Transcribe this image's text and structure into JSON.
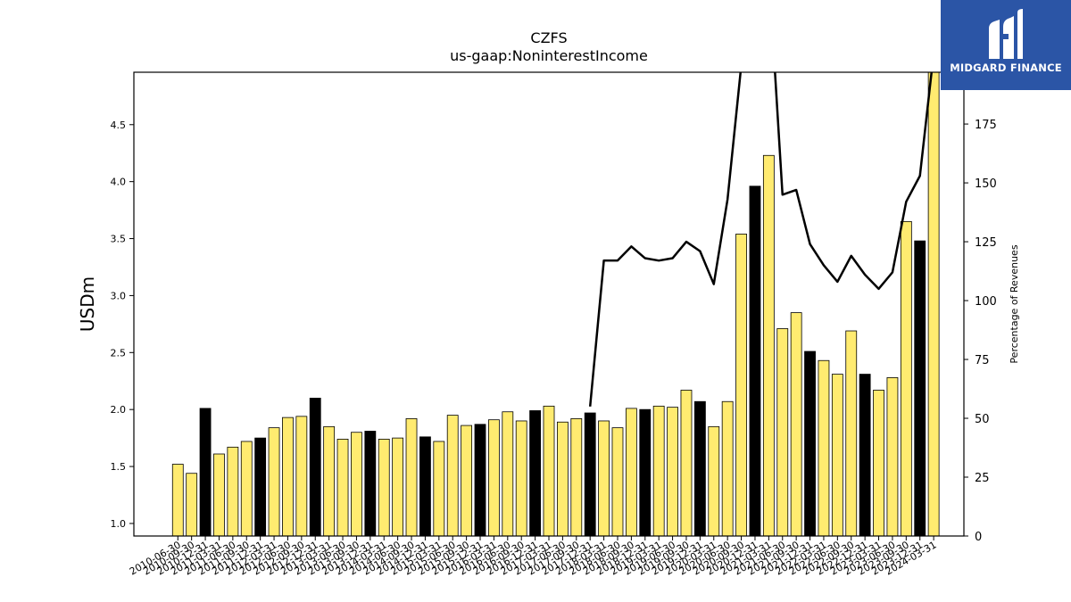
{
  "brand": {
    "name": "MIDGARD FINANCE"
  },
  "chart_data": {
    "type": "bar",
    "title": "CZFS",
    "subtitle": "us-gaap:NoninterestIncome",
    "ylabel": "USDm",
    "y2label": "Percentage of Revenues",
    "ylim": [
      0.89,
      4.96
    ],
    "y2lim": [
      0,
      197
    ],
    "yticks": [
      1.0,
      1.5,
      2.0,
      2.5,
      3.0,
      3.5,
      4.0,
      4.5
    ],
    "y2ticks": [
      0,
      25,
      50,
      75,
      100,
      125,
      150,
      175,
      200
    ],
    "colors": {
      "bar_default": "#ffeb70",
      "bar_highlight": "#000000",
      "line": "#000000"
    },
    "categories": [
      "2010-06-30",
      "2010-09-30",
      "2010-12-31",
      "2011-03-31",
      "2011-06-30",
      "2011-09-30",
      "2011-12-31",
      "2012-03-31",
      "2012-06-30",
      "2012-09-30",
      "2012-12-31",
      "2013-03-31",
      "2013-06-30",
      "2013-09-30",
      "2013-12-31",
      "2014-03-31",
      "2014-06-30",
      "2014-09-30",
      "2014-12-31",
      "2015-03-31",
      "2015-06-30",
      "2015-09-30",
      "2015-12-31",
      "2016-03-31",
      "2016-06-30",
      "2016-09-30",
      "2016-12-31",
      "2017-03-31",
      "2017-06-30",
      "2017-09-30",
      "2017-12-31",
      "2018-03-31",
      "2018-06-30",
      "2018-09-30",
      "2018-12-31",
      "2019-03-31",
      "2019-06-30",
      "2019-09-30",
      "2019-12-31",
      "2020-03-31",
      "2020-06-30",
      "2020-09-30",
      "2020-12-31",
      "2021-03-31",
      "2021-06-30",
      "2021-09-30",
      "2021-12-31",
      "2022-03-31",
      "2022-06-30",
      "2022-09-30",
      "2022-12-31",
      "2023-03-31",
      "2023-06-30",
      "2023-09-30",
      "2023-12-31",
      "2024-03-31"
    ],
    "series": [
      {
        "values": [
          1.52,
          1.44,
          2.01,
          1.61,
          1.67,
          1.72,
          1.75,
          1.84,
          1.93,
          1.94,
          2.1,
          1.85,
          1.74,
          1.8,
          1.81,
          1.74,
          1.75,
          1.92,
          1.76,
          1.72,
          1.95,
          1.86,
          1.87,
          1.91,
          1.98,
          1.9,
          1.99,
          2.03,
          1.89,
          1.92,
          1.97,
          1.9,
          1.84,
          2.01,
          2.0,
          2.03,
          2.02,
          2.17,
          2.07,
          1.85,
          2.07,
          3.54,
          3.96,
          4.23,
          2.71,
          2.85,
          2.51,
          2.43,
          2.31,
          2.69,
          2.31,
          2.17,
          2.28,
          3.65,
          3.48,
          4.96
        ],
        "highlight": [
          false,
          false,
          true,
          false,
          false,
          false,
          true,
          false,
          false,
          false,
          true,
          false,
          false,
          false,
          true,
          false,
          false,
          false,
          true,
          false,
          false,
          false,
          true,
          false,
          false,
          false,
          true,
          false,
          false,
          false,
          true,
          false,
          false,
          false,
          true,
          false,
          false,
          false,
          true,
          false,
          false,
          false,
          true,
          false,
          false,
          false,
          true,
          false,
          false,
          false,
          true,
          false,
          false,
          false,
          true,
          false
        ]
      },
      {
        "axis": "right",
        "type": "line",
        "values": [
          null,
          null,
          null,
          null,
          null,
          null,
          null,
          null,
          null,
          null,
          null,
          null,
          null,
          null,
          null,
          null,
          null,
          null,
          null,
          null,
          null,
          null,
          null,
          null,
          null,
          null,
          null,
          null,
          null,
          null,
          55,
          117,
          117,
          123,
          118,
          117,
          118,
          125,
          121,
          107,
          143,
          200,
          230,
          240,
          145,
          147,
          124,
          115,
          108,
          119,
          111,
          105,
          112,
          142,
          153,
          205
        ]
      }
    ]
  }
}
